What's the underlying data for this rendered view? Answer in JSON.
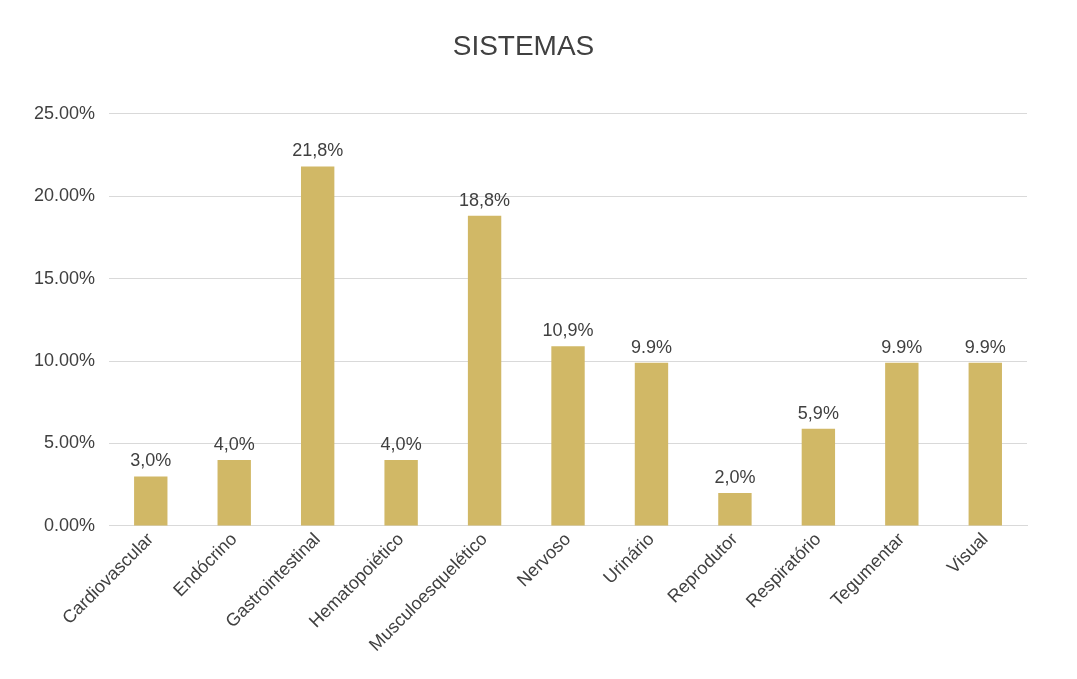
{
  "chart_data": {
    "type": "bar",
    "title": "SISTEMAS",
    "categories": [
      "Cardiovascular",
      "Endócrino",
      "Gastrointestinal",
      "Hematopoiético",
      "Musculoesquelético",
      "Nervoso",
      "Urinário",
      "Reprodutor",
      "Respiratório",
      "Tegumentar",
      "Visual"
    ],
    "values": [
      3.0,
      4.0,
      21.8,
      4.0,
      18.8,
      10.9,
      9.9,
      2.0,
      5.9,
      9.9,
      9.9
    ],
    "value_labels": [
      "3,0%",
      "4,0%",
      "21,8%",
      "4,0%",
      "18,8%",
      "10,9%",
      "9.9%",
      "2,0%",
      "5,9%",
      "9.9%",
      "9.9%"
    ],
    "color": "#d1b866",
    "ylim": [
      0,
      25
    ],
    "yticks": [
      {
        "value": 0,
        "label": "0.00%"
      },
      {
        "value": 5,
        "label": "5.00%"
      },
      {
        "value": 10,
        "label": "10.00%"
      },
      {
        "value": 15,
        "label": "15.00%"
      },
      {
        "value": 20,
        "label": "20.00%"
      },
      {
        "value": 25,
        "label": "25.00%"
      }
    ],
    "grid": "y"
  }
}
